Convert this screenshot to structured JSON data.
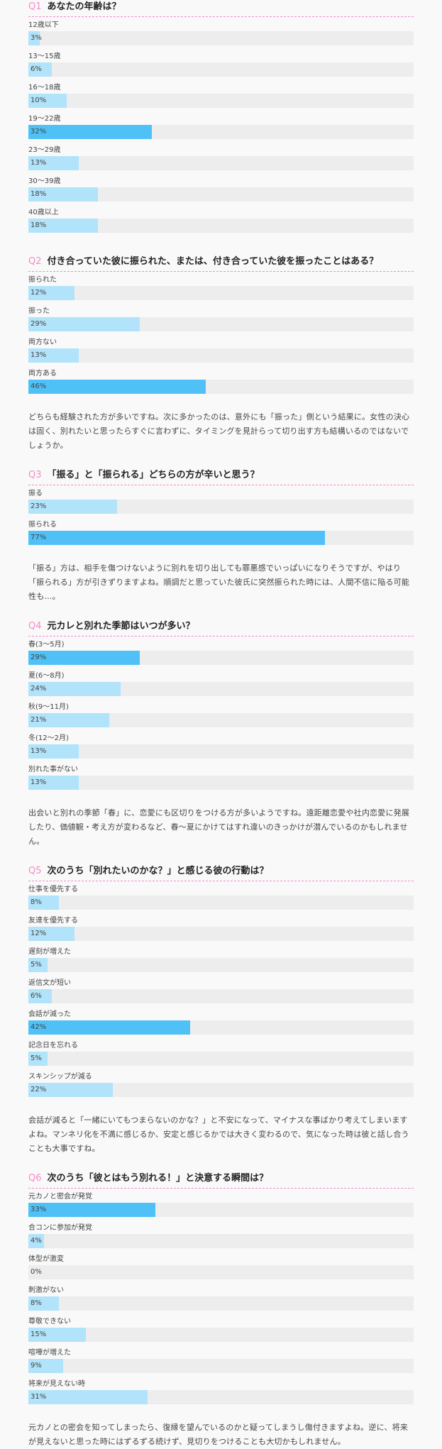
{
  "colors": {
    "qnum": "#f58bc9",
    "divider": "#f08ccb",
    "bar": "#b1e3fa",
    "bar_top": "#4fc1f7",
    "track": "#ededed"
  },
  "questions": [
    {
      "num": "Q1",
      "title": "あなたの年齢は？",
      "items": [
        {
          "label": "12歳以下",
          "pct": "3%",
          "value": 3
        },
        {
          "label": "13～15歳",
          "pct": "6%",
          "value": 6
        },
        {
          "label": "16～18歳",
          "pct": "10%",
          "value": 10
        },
        {
          "label": "19～22歳",
          "pct": "32%",
          "value": 32,
          "top": true
        },
        {
          "label": "23～29歳",
          "pct": "13%",
          "value": 13
        },
        {
          "label": "30～39歳",
          "pct": "18%",
          "value": 18
        },
        {
          "label": "40歳以上",
          "pct": "18%",
          "value": 18
        }
      ],
      "comment": ""
    },
    {
      "num": "Q2",
      "title": "付き合っていた彼に振られた、または、付き合っていた彼を振ったことはある？",
      "items": [
        {
          "label": "振られた",
          "pct": "12%",
          "value": 12
        },
        {
          "label": "振った",
          "pct": "29%",
          "value": 29
        },
        {
          "label": "両方ない",
          "pct": "13%",
          "value": 13
        },
        {
          "label": "両方ある",
          "pct": "46%",
          "value": 46,
          "top": true
        }
      ],
      "comment": "どちらも経験された方が多いですね。次に多かったのは、意外にも「振った」側という結果に。女性の決心は固く、別れたいと思ったらすぐに言わずに、タイミングを見計らって切り出す方も結構いるのではないでしょうか。"
    },
    {
      "num": "Q3",
      "title": "「振る」と「振られる」どちらの方が辛いと思う？",
      "items": [
        {
          "label": "振る",
          "pct": "23%",
          "value": 23
        },
        {
          "label": "振られる",
          "pct": "77%",
          "value": 77,
          "top": true
        }
      ],
      "comment": "「振る」方は、相手を傷つけないように別れを切り出しても罪悪感でいっぱいになりそうですが、やはり「振られる」方が引きずりますよね。順調だと思っていた彼氏に突然振られた時には、人間不信に陥る可能性も…。"
    },
    {
      "num": "Q4",
      "title": "元カレと別れた季節はいつが多い？",
      "items": [
        {
          "label": "春(3～5月)",
          "pct": "29%",
          "value": 29,
          "top": true
        },
        {
          "label": "夏(6～8月)",
          "pct": "24%",
          "value": 24
        },
        {
          "label": "秋(9～11月)",
          "pct": "21%",
          "value": 21
        },
        {
          "label": "冬(12～2月)",
          "pct": "13%",
          "value": 13
        },
        {
          "label": "別れた事がない",
          "pct": "13%",
          "value": 13
        }
      ],
      "comment": "出会いと別れの季節「春」に、恋愛にも区切りをつける方が多いようですね。遠距離恋愛や社内恋愛に発展したり、価値観・考え方が変わるなど、春～夏にかけてはすれ違いのきっかけが潜んでいるのかもしれません。"
    },
    {
      "num": "Q5",
      "title": "次のうち「別れたいのかな？」と感じる彼の行動は？",
      "items": [
        {
          "label": "仕事を優先する",
          "pct": "8%",
          "value": 8
        },
        {
          "label": "友達を優先する",
          "pct": "12%",
          "value": 12
        },
        {
          "label": "遅刻が増えた",
          "pct": "5%",
          "value": 5
        },
        {
          "label": "返信文が短い",
          "pct": "6%",
          "value": 6
        },
        {
          "label": "会話が減った",
          "pct": "42%",
          "value": 42,
          "top": true
        },
        {
          "label": "記念日を忘れる",
          "pct": "5%",
          "value": 5
        },
        {
          "label": "スキンシップが減る",
          "pct": "22%",
          "value": 22
        }
      ],
      "comment": "会話が減ると「一緒にいてもつまらないのかな？」と不安になって、マイナスな事ばかり考えてしまいますよね。マンネリ化を不満に感じるか、安定と感じるかでは大きく変わるので、気になった時は彼と話し合うことも大事ですね。"
    },
    {
      "num": "Q6",
      "title": "次のうち「彼とはもう別れる！」と決意する瞬間は？",
      "items": [
        {
          "label": "元カノと密会が発覚",
          "pct": "33%",
          "value": 33,
          "top": true
        },
        {
          "label": "合コンに参加が発覚",
          "pct": "4%",
          "value": 4
        },
        {
          "label": "体型が激変",
          "pct": "0%",
          "value": 0
        },
        {
          "label": "刺激がない",
          "pct": "8%",
          "value": 8
        },
        {
          "label": "尊敬できない",
          "pct": "15%",
          "value": 15
        },
        {
          "label": "喧嘩が増えた",
          "pct": "9%",
          "value": 9
        },
        {
          "label": "将来が見えない時",
          "pct": "31%",
          "value": 31
        }
      ],
      "comment": "元カノとの密会を知ってしまったら、復縁を望んでいるのかと疑ってしまうし傷付きますよね。逆に、将来が見えないと思った時にはずるずる続けず、見切りをつけることも大切かもしれません。"
    }
  ],
  "chart_data": [
    {
      "type": "bar",
      "orientation": "horizontal",
      "title": "Q1 あなたの年齢は？",
      "categories": [
        "12歳以下",
        "13～15歳",
        "16～18歳",
        "19～22歳",
        "23～29歳",
        "30～39歳",
        "40歳以上"
      ],
      "values": [
        3,
        6,
        10,
        32,
        13,
        18,
        18
      ],
      "unit": "%",
      "xlim": [
        0,
        100
      ]
    },
    {
      "type": "bar",
      "orientation": "horizontal",
      "title": "Q2 付き合っていた彼に振られた、または、付き合っていた彼を振ったことはある？",
      "categories": [
        "振られた",
        "振った",
        "両方ない",
        "両方ある"
      ],
      "values": [
        12,
        29,
        13,
        46
      ],
      "unit": "%",
      "xlim": [
        0,
        100
      ]
    },
    {
      "type": "bar",
      "orientation": "horizontal",
      "title": "Q3 「振る」と「振られる」どちらの方が辛いと思う？",
      "categories": [
        "振る",
        "振られる"
      ],
      "values": [
        23,
        77
      ],
      "unit": "%",
      "xlim": [
        0,
        100
      ]
    },
    {
      "type": "bar",
      "orientation": "horizontal",
      "title": "Q4 元カレと別れた季節はいつが多い？",
      "categories": [
        "春(3～5月)",
        "夏(6～8月)",
        "秋(9～11月)",
        "冬(12～2月)",
        "別れた事がない"
      ],
      "values": [
        29,
        24,
        21,
        13,
        13
      ],
      "unit": "%",
      "xlim": [
        0,
        100
      ]
    },
    {
      "type": "bar",
      "orientation": "horizontal",
      "title": "Q5 次のうち「別れたいのかな？」と感じる彼の行動は？",
      "categories": [
        "仕事を優先する",
        "友達を優先する",
        "遅刻が増えた",
        "返信文が短い",
        "会話が減った",
        "記念日を忘れる",
        "スキンシップが減る"
      ],
      "values": [
        8,
        12,
        5,
        6,
        42,
        5,
        22
      ],
      "unit": "%",
      "xlim": [
        0,
        100
      ]
    },
    {
      "type": "bar",
      "orientation": "horizontal",
      "title": "Q6 次のうち「彼とはもう別れる！」と決意する瞬間は？",
      "categories": [
        "元カノと密会が発覚",
        "合コンに参加が発覚",
        "体型が激変",
        "刺激がない",
        "尊敬できない",
        "喧嘩が増えた",
        "将来が見えない時"
      ],
      "values": [
        33,
        4,
        0,
        8,
        15,
        9,
        31
      ],
      "unit": "%",
      "xlim": [
        0,
        100
      ]
    }
  ]
}
